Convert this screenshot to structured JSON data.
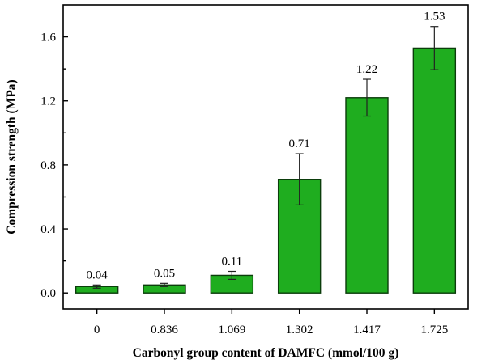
{
  "chart_data": {
    "type": "bar",
    "categories": [
      "0",
      "0.836",
      "1.069",
      "1.302",
      "1.417",
      "1.725"
    ],
    "values": [
      0.04,
      0.05,
      0.11,
      0.71,
      1.22,
      1.53
    ],
    "errors": [
      0.01,
      0.01,
      0.025,
      0.16,
      0.115,
      0.135
    ],
    "data_labels": [
      "0.04",
      "0.05",
      "0.11",
      "0.71",
      "1.22",
      "1.53"
    ],
    "xlabel": "Carbonyl group content of DAMFC (mmol/100 g)",
    "ylabel": "Compression strength (MPa)",
    "ylim": [
      -0.1,
      1.8
    ],
    "yticks": [
      0.0,
      0.4,
      0.8,
      1.2,
      1.6
    ],
    "ytick_labels": [
      "0.0",
      "0.4",
      "0.8",
      "1.2",
      "1.6"
    ],
    "bar_color": "#1fad1f",
    "grid": false,
    "legend": "none"
  }
}
